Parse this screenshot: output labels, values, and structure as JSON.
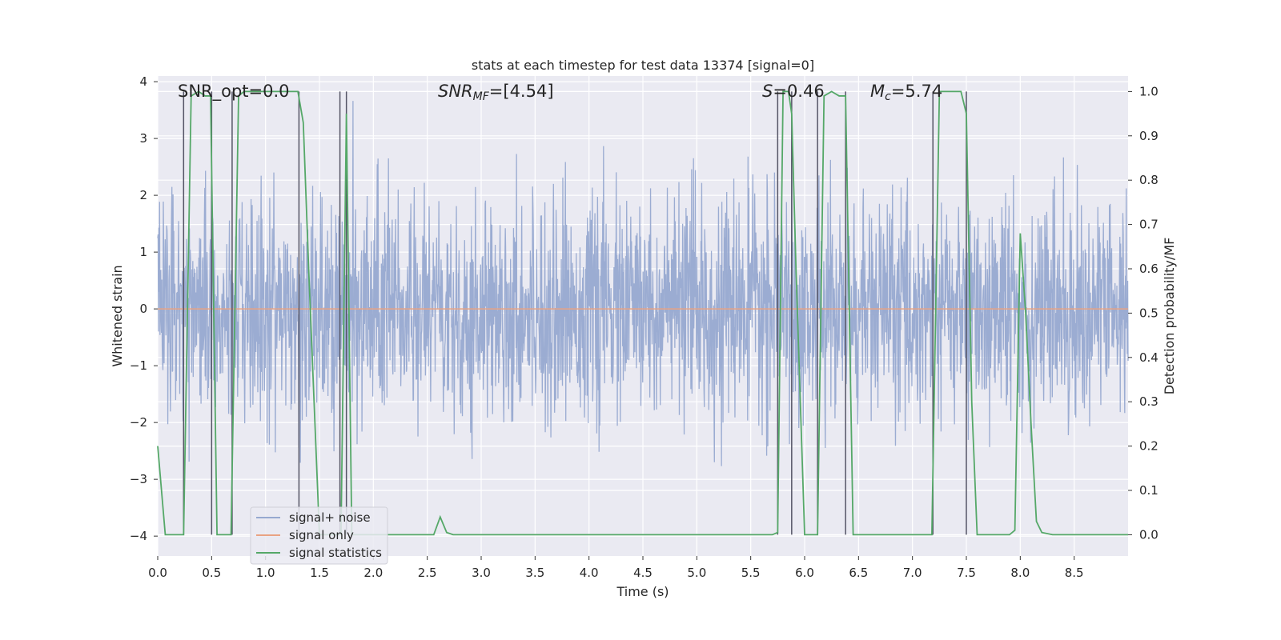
{
  "chart_data": {
    "type": "line",
    "title": "stats at each timestep for test data 13374 [signal=0]",
    "xlabel": "Time (s)",
    "ylabel": "Whitened strain",
    "ylabel_right": "Detection probability/MF",
    "xlim": [
      0,
      9.0
    ],
    "ylim": [
      -4.35,
      4.1
    ],
    "ylim_right": [
      -0.048,
      1.035
    ],
    "x_ticks": [
      "0.0",
      "0.5",
      "1.0",
      "1.5",
      "2.0",
      "2.5",
      "3.0",
      "3.5",
      "4.0",
      "4.5",
      "5.0",
      "5.5",
      "6.0",
      "6.5",
      "7.0",
      "7.5",
      "8.0",
      "8.5"
    ],
    "y_ticks": [
      "4",
      "3",
      "2",
      "1",
      "0",
      "−1",
      "−2",
      "−3",
      "−4"
    ],
    "y_right_ticks": [
      "1.0",
      "0.9",
      "0.8",
      "0.7",
      "0.6",
      "0.5",
      "0.4",
      "0.3",
      "0.2",
      "0.1",
      "0.0"
    ],
    "grid": true,
    "legend_position": "lower-left",
    "annotations": {
      "snr_opt": "SNR_opt=0.0",
      "snr_mf_sym": "SNR",
      "snr_mf_sub": "MF",
      "snr_mf_val": "=[4.54]",
      "s_sym": "S",
      "s_val": "=0.46",
      "mc_sym": "M",
      "mc_sub": "c",
      "mc_val": "=5.74"
    },
    "series": [
      {
        "name": "signal+ noise",
        "color": "#97a9d0",
        "description": "whitened strain noise, approx. within -3.3..3.8",
        "noise_sigma": 0.95
      },
      {
        "name": "signal only",
        "color": "#e9a383",
        "constant_y": 0
      },
      {
        "name": "signal statistics",
        "color": "#55a868",
        "axis": "right",
        "x": [
          0.0,
          0.07,
          0.12,
          0.17,
          0.24,
          0.31,
          0.38,
          0.44,
          0.49,
          0.55,
          0.61,
          0.68,
          0.75,
          0.8,
          0.86,
          1.0,
          1.1,
          1.2,
          1.3,
          1.35,
          1.4,
          1.45,
          1.5,
          1.55,
          1.6,
          1.65,
          1.7,
          1.75,
          1.8,
          1.9,
          2.0,
          2.2,
          2.4,
          2.56,
          2.62,
          2.68,
          2.74,
          3.0,
          4.0,
          5.0,
          5.7,
          5.75,
          5.8,
          5.85,
          5.88,
          5.92,
          6.0,
          6.05,
          6.12,
          6.18,
          6.25,
          6.32,
          6.38,
          6.45,
          6.6,
          7.0,
          7.18,
          7.25,
          7.35,
          7.45,
          7.5,
          7.55,
          7.6,
          7.7,
          7.8,
          7.9,
          7.95,
          8.0,
          8.05,
          8.1,
          8.15,
          8.2,
          8.3,
          8.5,
          9.0
        ],
        "y": [
          0.2,
          0.0,
          0.0,
          0.0,
          0.0,
          0.99,
          1.0,
          0.99,
          0.99,
          0.0,
          0.0,
          0.0,
          0.99,
          1.0,
          1.0,
          1.0,
          1.0,
          1.0,
          1.0,
          0.93,
          0.6,
          0.3,
          0.0,
          0.0,
          0.0,
          0.0,
          0.0,
          0.95,
          0.0,
          0.0,
          0.0,
          0.0,
          0.0,
          0.0,
          0.04,
          0.005,
          0.0,
          0.0,
          0.0,
          0.0,
          0.0,
          0.005,
          1.0,
          1.0,
          0.95,
          0.6,
          0.0,
          0.0,
          0.0,
          0.99,
          1.0,
          0.99,
          0.99,
          0.0,
          0.0,
          0.0,
          0.0,
          1.0,
          1.0,
          1.0,
          0.95,
          0.3,
          0.0,
          0.0,
          0.0,
          0.0,
          0.01,
          0.68,
          0.5,
          0.25,
          0.03,
          0.005,
          0.0,
          0.0,
          0.0
        ]
      }
    ],
    "vertical_lines_x": [
      0.24,
      0.5,
      0.69,
      1.31,
      1.69,
      1.75,
      5.75,
      5.88,
      6.12,
      6.38,
      7.19,
      7.5
    ]
  }
}
